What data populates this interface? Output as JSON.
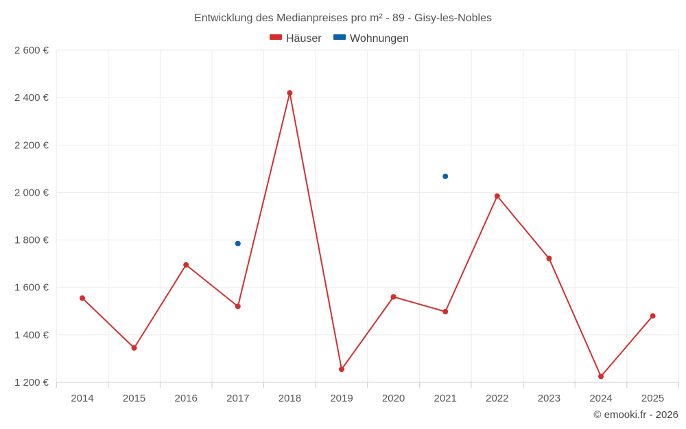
{
  "chart_data": {
    "type": "line",
    "title": "Entwicklung des Medianpreises pro m² - 89 - Gisy-les-Nobles",
    "xlabel": "",
    "ylabel": "",
    "categories": [
      "2014",
      "2015",
      "2016",
      "2017",
      "2018",
      "2019",
      "2020",
      "2021",
      "2022",
      "2023",
      "2024",
      "2025"
    ],
    "ylim": [
      1200,
      2600
    ],
    "yticks": [
      1200,
      1400,
      1600,
      1800,
      2000,
      2200,
      2400,
      2600
    ],
    "ytick_labels": [
      "1 200 €",
      "1 400 €",
      "1 600 €",
      "1 800 €",
      "2 000 €",
      "2 200 €",
      "2 400 €",
      "2 600 €"
    ],
    "grid": true,
    "legend_position": "top-center",
    "series": [
      {
        "name": "Häuser",
        "color": "#d32f2f",
        "values": [
          1555,
          1345,
          1695,
          1520,
          2420,
          1255,
          1560,
          1498,
          1985,
          1722,
          1225,
          1480
        ]
      },
      {
        "name": "Wohnungen",
        "color": "#0d63a5",
        "values": [
          null,
          null,
          null,
          1785,
          null,
          null,
          null,
          2068,
          null,
          null,
          null,
          null
        ]
      }
    ],
    "credit": "© emooki.fr - 2026"
  }
}
